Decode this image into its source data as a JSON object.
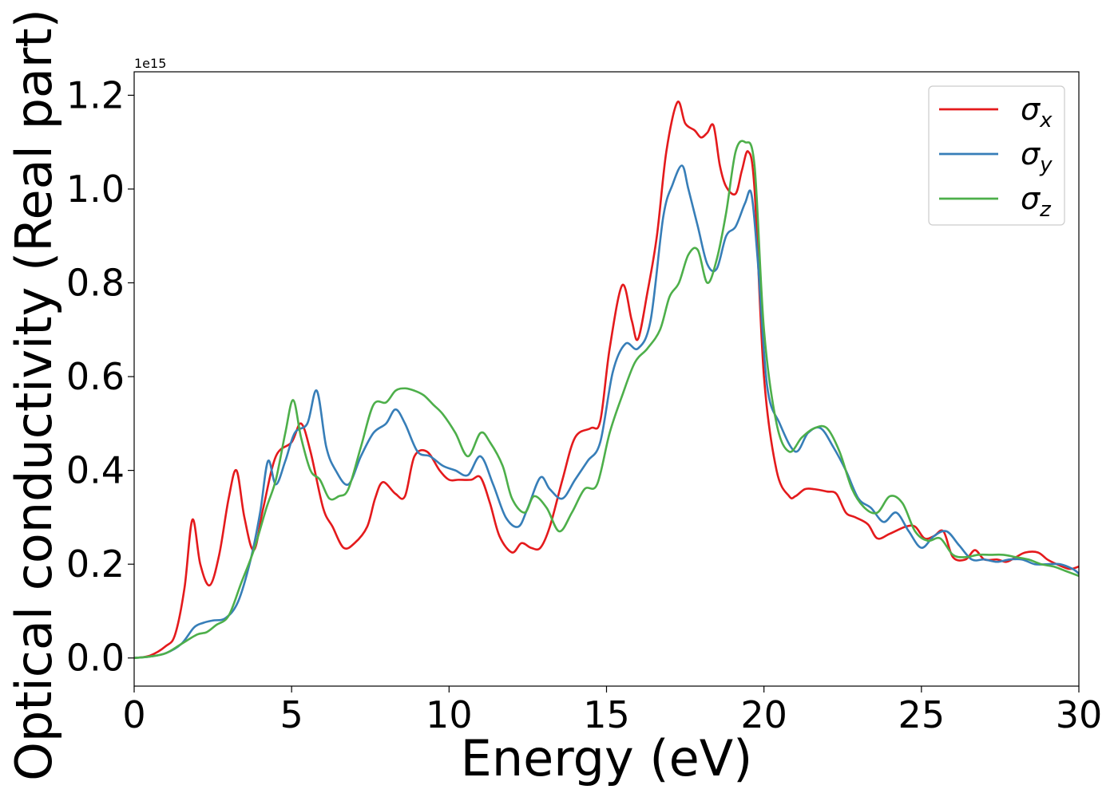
{
  "chart_data": {
    "type": "line",
    "title": "",
    "xlabel": "Energy (eV)",
    "ylabel": "Optical conductivity (Real part)",
    "y_offset_label": "1e15",
    "xlim": [
      0,
      30
    ],
    "ylim": [
      -0.06,
      1.25
    ],
    "xticks": [
      0,
      5,
      10,
      15,
      20,
      25,
      30
    ],
    "xtick_labels": [
      "0",
      "5",
      "10",
      "15",
      "20",
      "25",
      "30"
    ],
    "yticks": [
      0.0,
      0.2,
      0.4,
      0.6,
      0.8,
      1.0,
      1.2
    ],
    "ytick_labels": [
      "0.0",
      "0.2",
      "0.4",
      "0.6",
      "0.8",
      "1.0",
      "1.2"
    ],
    "grid": false,
    "legend_position": "top-right",
    "series": [
      {
        "name": "σx",
        "legend_symbol": "σ",
        "legend_sub": "x",
        "color": "#e41a1c",
        "x": [
          0,
          0.5,
          1.0,
          1.3,
          1.6,
          1.85,
          2.1,
          2.4,
          2.7,
          3.0,
          3.25,
          3.5,
          3.8,
          4.1,
          4.5,
          5.0,
          5.3,
          5.6,
          6.0,
          6.3,
          6.65,
          7.0,
          7.4,
          7.65,
          7.9,
          8.3,
          8.6,
          8.9,
          9.3,
          9.7,
          10.0,
          10.3,
          10.7,
          11.0,
          11.3,
          11.6,
          12.0,
          12.3,
          12.6,
          12.9,
          13.2,
          13.6,
          14.0,
          14.5,
          14.8,
          15.1,
          15.5,
          15.8,
          16.0,
          16.3,
          16.6,
          16.9,
          17.25,
          17.5,
          17.8,
          18.0,
          18.2,
          18.4,
          18.6,
          18.8,
          19.1,
          19.3,
          19.5,
          19.7,
          20.0,
          20.4,
          20.8,
          21.0,
          21.3,
          21.6,
          22.0,
          22.3,
          22.6,
          22.9,
          23.3,
          23.6,
          24.0,
          24.5,
          24.8,
          25.1,
          25.4,
          25.7,
          26.0,
          26.4,
          26.7,
          27.0,
          27.4,
          27.7,
          28.0,
          28.3,
          28.7,
          29.0,
          29.3,
          29.7,
          30.0
        ],
        "y": [
          0.0,
          0.005,
          0.025,
          0.05,
          0.15,
          0.295,
          0.2,
          0.155,
          0.22,
          0.34,
          0.4,
          0.3,
          0.23,
          0.32,
          0.43,
          0.46,
          0.5,
          0.44,
          0.32,
          0.28,
          0.235,
          0.245,
          0.28,
          0.34,
          0.375,
          0.35,
          0.345,
          0.43,
          0.44,
          0.4,
          0.38,
          0.38,
          0.38,
          0.385,
          0.33,
          0.26,
          0.225,
          0.245,
          0.235,
          0.235,
          0.28,
          0.38,
          0.47,
          0.49,
          0.505,
          0.66,
          0.795,
          0.72,
          0.68,
          0.78,
          0.9,
          1.08,
          1.185,
          1.14,
          1.125,
          1.11,
          1.12,
          1.135,
          1.05,
          1.005,
          0.99,
          1.04,
          1.08,
          1.0,
          0.6,
          0.4,
          0.345,
          0.345,
          0.36,
          0.36,
          0.355,
          0.35,
          0.31,
          0.3,
          0.285,
          0.255,
          0.265,
          0.28,
          0.28,
          0.255,
          0.26,
          0.27,
          0.215,
          0.21,
          0.23,
          0.21,
          0.21,
          0.205,
          0.215,
          0.225,
          0.225,
          0.21,
          0.2,
          0.19,
          0.195
        ]
      },
      {
        "name": "σy",
        "legend_symbol": "σ",
        "legend_sub": "y",
        "color": "#377eb8",
        "x": [
          0,
          0.5,
          1.0,
          1.5,
          1.9,
          2.2,
          2.5,
          2.9,
          3.3,
          3.7,
          4.0,
          4.25,
          4.5,
          4.8,
          5.1,
          5.5,
          5.8,
          6.1,
          6.4,
          6.8,
          7.2,
          7.6,
          8.0,
          8.3,
          8.6,
          9.0,
          9.4,
          9.8,
          10.2,
          10.6,
          11.0,
          11.4,
          11.8,
          12.2,
          12.5,
          12.9,
          13.2,
          13.6,
          14.0,
          14.4,
          14.8,
          15.2,
          15.6,
          16.0,
          16.4,
          16.8,
          17.1,
          17.4,
          17.6,
          17.9,
          18.2,
          18.5,
          18.8,
          19.1,
          19.4,
          19.6,
          19.8,
          20.1,
          20.5,
          21.0,
          21.4,
          21.8,
          22.2,
          22.6,
          23.0,
          23.4,
          23.8,
          24.2,
          24.6,
          25.0,
          25.4,
          25.8,
          26.2,
          26.6,
          27.0,
          27.4,
          27.8,
          28.2,
          28.6,
          29.0,
          29.4,
          29.8,
          30.0
        ],
        "y": [
          0.0,
          0.003,
          0.01,
          0.03,
          0.065,
          0.075,
          0.08,
          0.085,
          0.12,
          0.21,
          0.31,
          0.42,
          0.37,
          0.42,
          0.48,
          0.5,
          0.57,
          0.45,
          0.4,
          0.37,
          0.43,
          0.48,
          0.5,
          0.53,
          0.5,
          0.44,
          0.43,
          0.41,
          0.4,
          0.39,
          0.43,
          0.37,
          0.3,
          0.28,
          0.32,
          0.385,
          0.36,
          0.34,
          0.38,
          0.42,
          0.46,
          0.61,
          0.67,
          0.66,
          0.72,
          0.94,
          1.01,
          1.05,
          1.0,
          0.92,
          0.84,
          0.83,
          0.9,
          0.92,
          0.97,
          0.99,
          0.85,
          0.58,
          0.5,
          0.44,
          0.48,
          0.49,
          0.45,
          0.4,
          0.34,
          0.32,
          0.29,
          0.31,
          0.27,
          0.235,
          0.26,
          0.27,
          0.24,
          0.21,
          0.21,
          0.205,
          0.21,
          0.21,
          0.2,
          0.2,
          0.2,
          0.19,
          0.18
        ]
      },
      {
        "name": "σz",
        "legend_symbol": "σ",
        "legend_sub": "z",
        "color": "#4daf4a",
        "x": [
          0,
          0.5,
          1.0,
          1.5,
          2.0,
          2.3,
          2.6,
          3.0,
          3.4,
          3.8,
          4.2,
          4.5,
          4.8,
          5.05,
          5.3,
          5.6,
          5.9,
          6.2,
          6.5,
          6.8,
          7.2,
          7.6,
          8.0,
          8.3,
          8.6,
          8.9,
          9.2,
          9.5,
          9.8,
          10.2,
          10.6,
          11.0,
          11.3,
          11.7,
          12.0,
          12.4,
          12.7,
          13.1,
          13.5,
          13.9,
          14.3,
          14.7,
          15.1,
          15.5,
          15.9,
          16.3,
          16.7,
          17.0,
          17.3,
          17.6,
          17.9,
          18.2,
          18.5,
          18.8,
          19.1,
          19.4,
          19.7,
          20.0,
          20.4,
          20.8,
          21.2,
          21.6,
          22.0,
          22.4,
          22.8,
          23.2,
          23.6,
          24.0,
          24.4,
          24.8,
          25.2,
          25.6,
          26.0,
          26.4,
          26.8,
          27.2,
          27.6,
          28.0,
          28.4,
          28.8,
          29.2,
          29.6,
          30.0
        ],
        "y": [
          0.0,
          0.003,
          0.01,
          0.03,
          0.05,
          0.055,
          0.07,
          0.09,
          0.16,
          0.23,
          0.32,
          0.38,
          0.48,
          0.55,
          0.47,
          0.4,
          0.38,
          0.34,
          0.345,
          0.36,
          0.45,
          0.54,
          0.545,
          0.57,
          0.575,
          0.57,
          0.56,
          0.54,
          0.52,
          0.48,
          0.43,
          0.48,
          0.46,
          0.41,
          0.34,
          0.31,
          0.345,
          0.32,
          0.27,
          0.31,
          0.36,
          0.37,
          0.48,
          0.56,
          0.63,
          0.66,
          0.7,
          0.77,
          0.8,
          0.86,
          0.87,
          0.8,
          0.85,
          0.95,
          1.08,
          1.1,
          1.05,
          0.7,
          0.5,
          0.44,
          0.47,
          0.49,
          0.49,
          0.44,
          0.36,
          0.32,
          0.31,
          0.345,
          0.33,
          0.27,
          0.25,
          0.255,
          0.22,
          0.215,
          0.22,
          0.22,
          0.22,
          0.215,
          0.21,
          0.2,
          0.195,
          0.185,
          0.175
        ]
      }
    ]
  }
}
